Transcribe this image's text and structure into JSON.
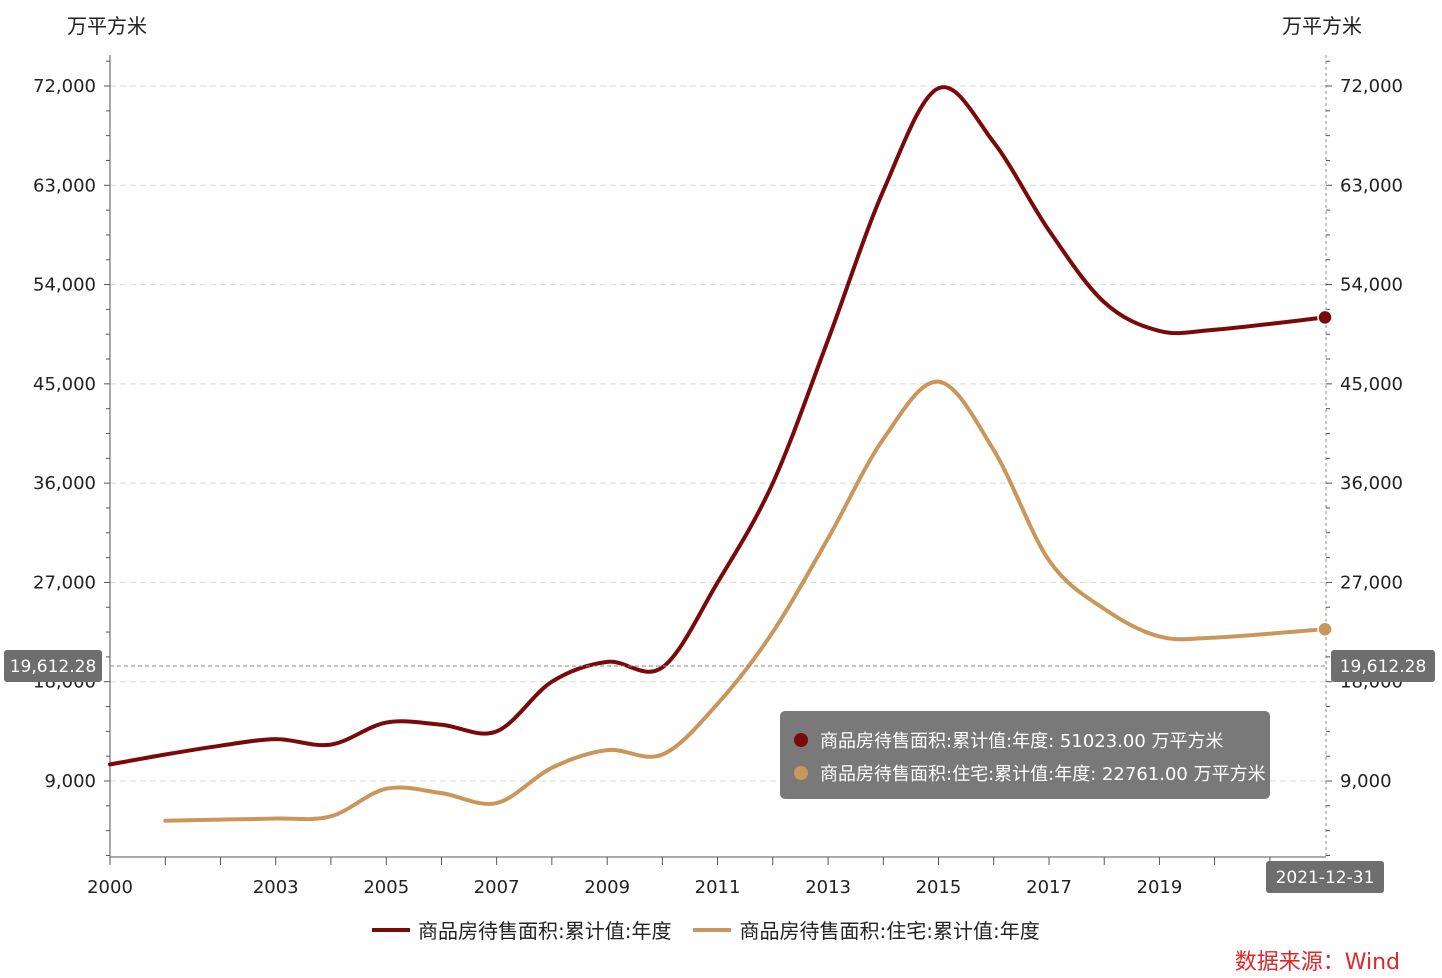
{
  "chart_data": {
    "type": "line",
    "y_unit_left": "万平方米",
    "y_unit_right": "万平方米",
    "ylim": [
      0,
      76000
    ],
    "y_ticks": [
      9000,
      18000,
      27000,
      36000,
      45000,
      54000,
      63000,
      72000
    ],
    "y_tick_labels": [
      "9,000",
      "18,000",
      "27,000",
      "36,000",
      "45,000",
      "54,000",
      "63,000",
      "72,000"
    ],
    "xlim": [
      "2000-01-01",
      "2021-12-31"
    ],
    "x_tick_labels": [
      "2000",
      "2003",
      "2005",
      "2007",
      "2009",
      "2011",
      "2013",
      "2015",
      "2017",
      "2019"
    ],
    "grid": true,
    "legend_position": "bottom",
    "series": [
      {
        "name": "商品房待售面积:累计值:年度",
        "color": "#7a0a0a",
        "points": [
          [
            "2000-01-01",
            10500
          ],
          [
            "2001-01-01",
            11400
          ],
          [
            "2002-01-01",
            12200
          ],
          [
            "2003-01-01",
            12800
          ],
          [
            "2004-01-01",
            12300
          ],
          [
            "2005-01-01",
            14300
          ],
          [
            "2006-01-01",
            14100
          ],
          [
            "2007-01-01",
            13500
          ],
          [
            "2008-01-01",
            18000
          ],
          [
            "2009-01-01",
            19800
          ],
          [
            "2010-01-01",
            19300
          ],
          [
            "2011-01-01",
            27000
          ],
          [
            "2012-01-01",
            36000
          ],
          [
            "2013-01-01",
            49000
          ],
          [
            "2014-01-01",
            62500
          ],
          [
            "2015-01-01",
            71800
          ],
          [
            "2016-01-01",
            66900
          ],
          [
            "2017-01-01",
            58900
          ],
          [
            "2018-01-01",
            52400
          ],
          [
            "2019-01-01",
            49800
          ],
          [
            "2020-01-01",
            49900
          ],
          [
            "2021-12-31",
            51023
          ]
        ]
      },
      {
        "name": "商品房待售面积:住宅:累计值:年度",
        "color": "#c9975b",
        "points": [
          [
            "2001-01-01",
            5400
          ],
          [
            "2002-01-01",
            5500
          ],
          [
            "2003-01-01",
            5600
          ],
          [
            "2004-01-01",
            5800
          ],
          [
            "2005-01-01",
            8300
          ],
          [
            "2006-01-01",
            7900
          ],
          [
            "2007-01-01",
            7000
          ],
          [
            "2008-01-01",
            10200
          ],
          [
            "2009-01-01",
            11800
          ],
          [
            "2010-01-01",
            11400
          ],
          [
            "2011-01-01",
            16000
          ],
          [
            "2012-01-01",
            22500
          ],
          [
            "2013-01-01",
            31000
          ],
          [
            "2014-01-01",
            40000
          ],
          [
            "2015-01-01",
            45200
          ],
          [
            "2016-01-01",
            39000
          ],
          [
            "2017-01-01",
            29000
          ],
          [
            "2018-01-01",
            24600
          ],
          [
            "2019-01-01",
            22100
          ],
          [
            "2020-01-01",
            22000
          ],
          [
            "2021-12-31",
            22761
          ]
        ]
      }
    ],
    "crosshair": {
      "y_value_label": "19,612.28",
      "x_value_label": "2021-12-31"
    },
    "tooltip": [
      {
        "label": "商品房待售面积:累计值:年度: 51023.00  万平方米",
        "color": "#7a0a0a"
      },
      {
        "label": "商品房待售面积:住宅:累计值:年度: 22761.00  万平方米",
        "color": "#c9975b"
      }
    ],
    "legend": [
      "商品房待售面积:累计值:年度",
      "商品房待售面积:住宅:累计值:年度"
    ],
    "source": "数据来源：Wind"
  }
}
